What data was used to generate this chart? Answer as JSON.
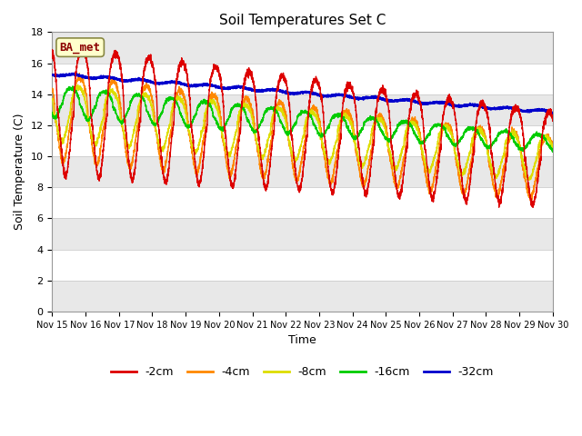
{
  "title": "Soil Temperatures Set C",
  "xlabel": "Time",
  "ylabel": "Soil Temperature (C)",
  "ylim": [
    0,
    18
  ],
  "yticks": [
    0,
    2,
    4,
    6,
    8,
    10,
    12,
    14,
    16,
    18
  ],
  "colors": {
    "-2cm": "#dd0000",
    "-4cm": "#ff8800",
    "-8cm": "#dddd00",
    "-16cm": "#00cc00",
    "-32cm": "#0000cc"
  },
  "legend_labels": [
    "-2cm",
    "-4cm",
    "-8cm",
    "-16cm",
    "-32cm"
  ],
  "annotation_text": "BA_met",
  "annotation_color": "#8B0000",
  "annotation_bg": "#ffffcc",
  "bg_color": "#ffffff",
  "stripe_color": "#e8e8e8",
  "title_fontsize": 11,
  "axis_fontsize": 9,
  "tick_fontsize": 8,
  "n_days": 15,
  "ppd": 288
}
